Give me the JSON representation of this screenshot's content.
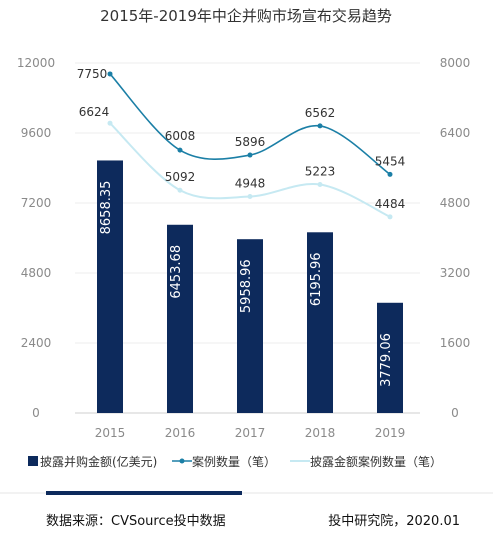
{
  "chart_data": {
    "type": "bar",
    "title": "2015年-2019年中企并购市场宣布交易趋势",
    "categories": [
      "2015",
      "2016",
      "2017",
      "2018",
      "2019"
    ],
    "series": [
      {
        "name": "披露并购金额(亿美元)",
        "type": "bar",
        "axis": "left",
        "values": [
          8658.35,
          6453.68,
          5958.96,
          6195.96,
          3779.06
        ],
        "labels": [
          "8658.35",
          "6453.68",
          "5958.96",
          "6195.96",
          "3779.06"
        ],
        "color": "#0d2a5c"
      },
      {
        "name": "案例数量（笔）",
        "type": "line",
        "axis": "right",
        "values": [
          7750,
          6008,
          5896,
          6562,
          5454
        ],
        "labels": [
          "7750",
          "6008",
          "5896",
          "6562",
          "5454"
        ],
        "color": "#1b7fa6"
      },
      {
        "name": "披露金额案例数量（笔）",
        "type": "line",
        "axis": "right",
        "values": [
          6624,
          5092,
          4948,
          5223,
          4484
        ],
        "labels": [
          "6624",
          "5092",
          "4948",
          "5223",
          "4484"
        ],
        "color": "#c6e9f2"
      }
    ],
    "ylim_left": [
      0,
      12000
    ],
    "yticks_left": [
      "0",
      "2400",
      "4800",
      "7200",
      "9600",
      "12000"
    ],
    "ylim_right": [
      0,
      8000
    ],
    "yticks_right": [
      "0",
      "1600",
      "3200",
      "4800",
      "6400",
      "8000"
    ],
    "grid": true,
    "legend_position": "bottom"
  },
  "footer": {
    "source": "数据来源：CVSource投中数据",
    "publisher": "投中研究院，2020.01"
  },
  "colors": {
    "bar": "#0d2a5c",
    "line1": "#1b7fa6",
    "line2": "#c6e9f2",
    "footer_rule": "#0d2a5c"
  }
}
